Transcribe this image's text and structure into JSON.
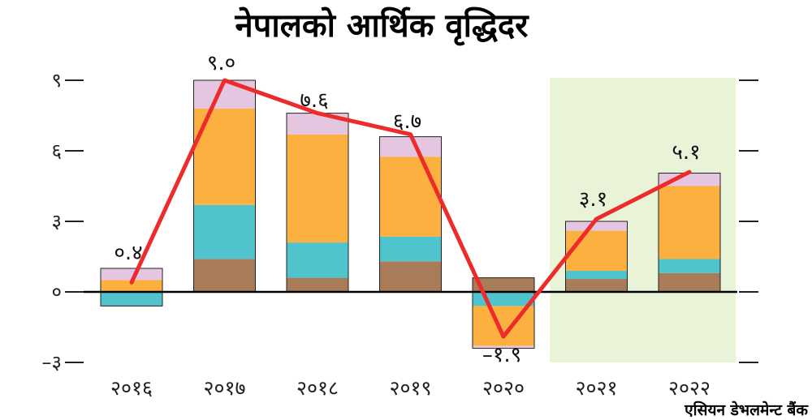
{
  "chart_data": {
    "type": "bar",
    "title": "नेपालको आर्थिक वृद्धिदर",
    "source": "एसियन डेभलमेन्ट बैंक",
    "categories": [
      "२०१६",
      "२०१७",
      "२०१८",
      "२०१९",
      "२०२०",
      "२०२१",
      "२०२२"
    ],
    "y_ticks": [
      {
        "value": -3,
        "label": "–३"
      },
      {
        "value": 0,
        "label": "०"
      },
      {
        "value": 3,
        "label": "३"
      },
      {
        "value": 6,
        "label": "६"
      },
      {
        "value": 9,
        "label": "९"
      }
    ],
    "ylim": [
      -3,
      9
    ],
    "series": [
      {
        "color": "#a87c58",
        "values": [
          0,
          1.4,
          0.6,
          1.3,
          0.6,
          0.55,
          0.8
        ]
      },
      {
        "color": "#4fc4cc",
        "values": [
          -0.6,
          2.3,
          1.5,
          1.05,
          -0.6,
          0.35,
          0.6
        ]
      },
      {
        "color": "#fbb040",
        "values": [
          0.5,
          4.1,
          4.6,
          3.4,
          -1.7,
          1.7,
          3.1
        ]
      },
      {
        "color": "#e5c6e0",
        "values": [
          0.5,
          1.2,
          0.9,
          0.85,
          -0.1,
          0.4,
          0.55
        ]
      }
    ],
    "growth_line": {
      "color": "#ee2b2b",
      "values": [
        0.4,
        9.0,
        7.6,
        6.7,
        -1.9,
        3.1,
        5.1
      ],
      "labels": [
        "०.४",
        "९.०",
        "७.६",
        "६.७",
        "–१.९",
        "३.१",
        "५.१"
      ]
    },
    "highlight": {
      "from": "२०२१",
      "to": "२०२२",
      "color": "#e9f3d8"
    },
    "grid": false,
    "legend": "none"
  }
}
